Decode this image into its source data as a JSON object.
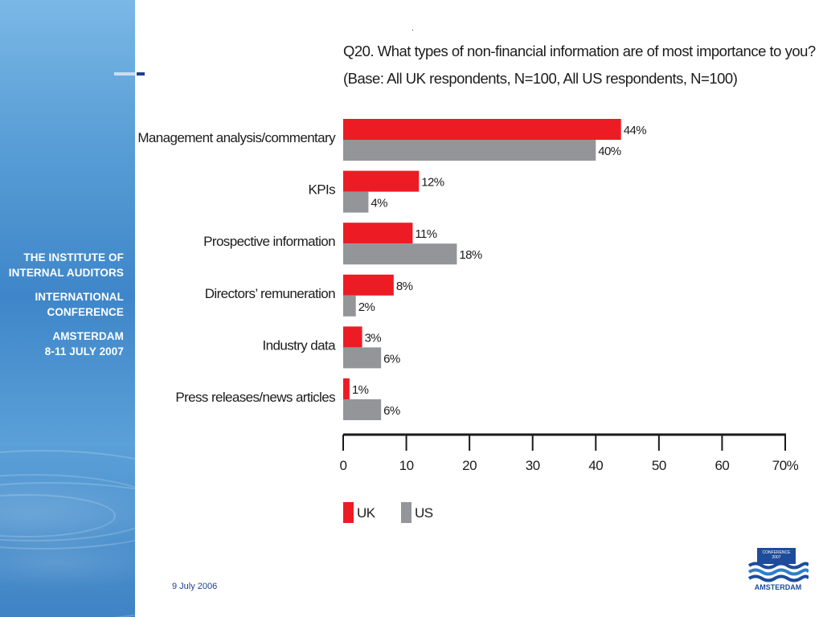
{
  "sidebar": {
    "organization": [
      "THE INSTITUTE OF",
      "INTERNAL AUDITORS"
    ],
    "event": [
      "INTERNATIONAL",
      "CONFERENCE"
    ],
    "location": [
      "AMSTERDAM",
      "8-11 JULY 2007"
    ]
  },
  "header": {
    "dot": ".",
    "title_line1": "Q20. What types of non-financial information are of most importance to you?",
    "title_line2": "(Base: All UK respondents, N=100, All US respondents, N=100)"
  },
  "footer": {
    "date": "9 July 2006"
  },
  "logo": {
    "badge_line1": "CONFERENCE",
    "badge_line2": "2007",
    "name": "AMSTERDAM"
  },
  "colors": {
    "uk": "#ed1c24",
    "us": "#939598",
    "axis": "#1a1a1a",
    "text": "#1c1c1c"
  },
  "chart_data": {
    "type": "bar",
    "orientation": "horizontal",
    "categories": [
      "Management analysis/commentary",
      "KPIs",
      "Prospective information",
      "Directors’ remuneration",
      "Industry data",
      "Press releases/news articles"
    ],
    "series": [
      {
        "name": "UK",
        "values": [
          44,
          12,
          11,
          8,
          3,
          1
        ],
        "labels": [
          "44%",
          "12%",
          "11%",
          "8%",
          "3%",
          "1%"
        ]
      },
      {
        "name": "US",
        "values": [
          40,
          4,
          18,
          2,
          6,
          6
        ],
        "labels": [
          "40%",
          "4%",
          "18%",
          "2%",
          "6%",
          "6%"
        ]
      }
    ],
    "xlim": [
      0,
      70
    ],
    "xticks": [
      0,
      10,
      20,
      30,
      40,
      50,
      60,
      70
    ],
    "xtick_labels": [
      "0",
      "10",
      "20",
      "30",
      "40",
      "50",
      "60",
      "70%"
    ],
    "legend": {
      "placement": "bottom-left",
      "entries": [
        "UK",
        "US"
      ]
    },
    "grid": false
  }
}
